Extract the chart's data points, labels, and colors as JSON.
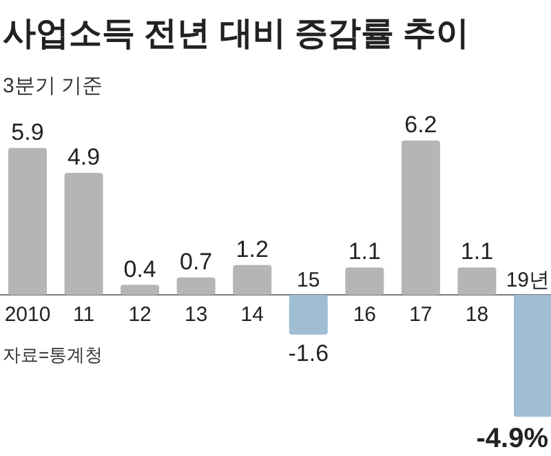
{
  "chart_data": {
    "type": "bar",
    "title": "사업소득 전년 대비 증감률 추이",
    "subtitle": "3분기 기준",
    "categories": [
      "2010",
      "11",
      "12",
      "13",
      "14",
      "15",
      "16",
      "17",
      "18",
      "19년"
    ],
    "values": [
      5.9,
      4.9,
      0.4,
      0.7,
      1.2,
      -1.6,
      1.1,
      6.2,
      1.1,
      -4.9
    ],
    "colors": [
      "#b5b5b5",
      "#b5b5b5",
      "#b5b5b5",
      "#b5b5b5",
      "#b5b5b5",
      "#9fbdd3",
      "#b5b5b5",
      "#b5b5b5",
      "#b5b5b5",
      "#9fbdd3"
    ],
    "value_labels": [
      "5.9",
      "4.9",
      "0.4",
      "0.7",
      "1.2",
      "-1.6",
      "1.1",
      "6.2",
      "1.1",
      "-4.9%"
    ],
    "annotations": [
      "자료=통계청"
    ]
  }
}
